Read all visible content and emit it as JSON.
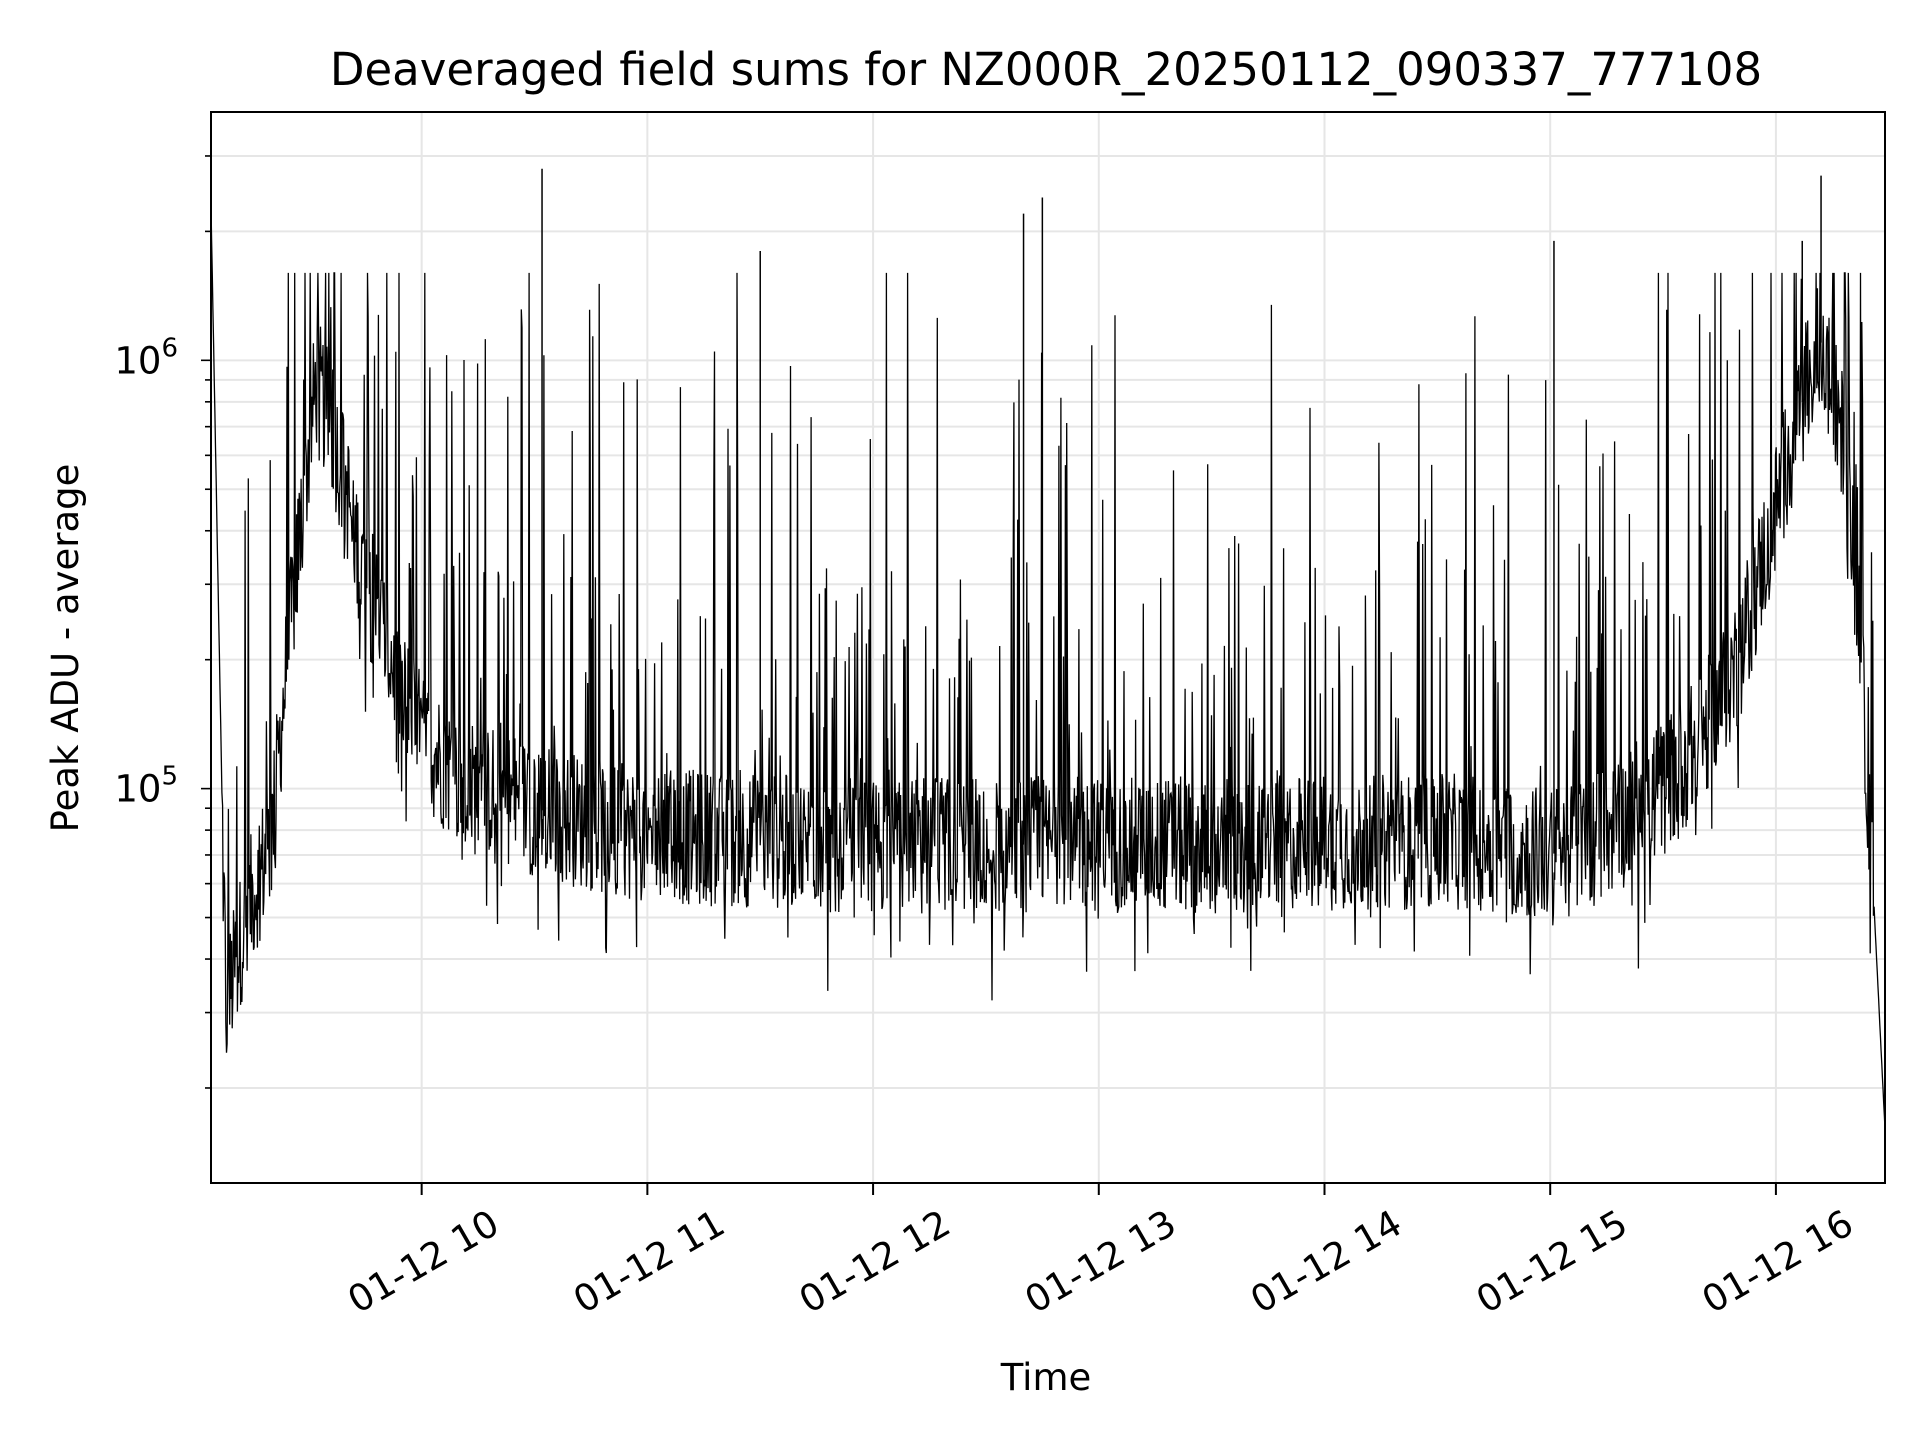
{
  "chart_data": {
    "type": "line",
    "title": "Deaveraged field sums for NZ000R_20250112_090337_777108",
    "xlabel": "Time",
    "ylabel": "Peak ADU - average",
    "x_axis": {
      "type": "time",
      "start": "2025-01-12 09:04",
      "end": "2025-01-12 16:29",
      "ticks": [
        {
          "value": "2025-01-12 10:00",
          "label": "01-12 10"
        },
        {
          "value": "2025-01-12 11:00",
          "label": "01-12 11"
        },
        {
          "value": "2025-01-12 12:00",
          "label": "01-12 12"
        },
        {
          "value": "2025-01-12 13:00",
          "label": "01-12 13"
        },
        {
          "value": "2025-01-12 14:00",
          "label": "01-12 14"
        },
        {
          "value": "2025-01-12 15:00",
          "label": "01-12 15"
        },
        {
          "value": "2025-01-12 16:00",
          "label": "01-12 16"
        }
      ]
    },
    "y_axis": {
      "scale": "log",
      "ylim": [
        12000,
        3800000
      ],
      "major_ticks": [
        {
          "value": 100000,
          "base": "10",
          "exp": "5"
        },
        {
          "value": 1000000,
          "base": "10",
          "exp": "6"
        }
      ]
    },
    "grid": true,
    "line_color": "#000000",
    "grid_color": "#e6e6e6",
    "series": [
      {
        "x": [
          "2025-01-12 09:04",
          "2025-01-12 09:08",
          "2025-01-12 09:12",
          "2025-01-12 09:16",
          "2025-01-12 09:20",
          "2025-01-12 09:24",
          "2025-01-12 09:28",
          "2025-01-12 09:32",
          "2025-01-12 09:36",
          "2025-01-12 09:40",
          "2025-01-12 09:44",
          "2025-01-12 09:48",
          "2025-01-12 09:52",
          "2025-01-12 09:56",
          "2025-01-12 10:00",
          "2025-01-12 10:06",
          "2025-01-12 10:12",
          "2025-01-12 10:18",
          "2025-01-12 10:24",
          "2025-01-12 10:30",
          "2025-01-12 10:40",
          "2025-01-12 10:50",
          "2025-01-12 11:00",
          "2025-01-12 11:20",
          "2025-01-12 11:40",
          "2025-01-12 12:00",
          "2025-01-12 12:20",
          "2025-01-12 12:40",
          "2025-01-12 13:00",
          "2025-01-12 13:20",
          "2025-01-12 13:40",
          "2025-01-12 14:00",
          "2025-01-12 14:20",
          "2025-01-12 14:40",
          "2025-01-12 15:00",
          "2025-01-12 15:10",
          "2025-01-12 15:20",
          "2025-01-12 15:30",
          "2025-01-12 15:40",
          "2025-01-12 15:50",
          "2025-01-12 16:00",
          "2025-01-12 16:06",
          "2025-01-12 16:12",
          "2025-01-12 16:18",
          "2025-01-12 16:22",
          "2025-01-12 16:26",
          "2025-01-12 16:29"
        ],
        "y": [
          2300000,
          30000,
          45000,
          60000,
          75000,
          190000,
          420000,
          900000,
          700000,
          500000,
          330000,
          260000,
          200000,
          160000,
          130000,
          115000,
          100000,
          100000,
          95000,
          90000,
          85000,
          80000,
          78000,
          76000,
          75000,
          74000,
          74000,
          74000,
          74000,
          74000,
          74000,
          75000,
          75000,
          75000,
          70000,
          75000,
          85000,
          100000,
          130000,
          200000,
          450000,
          750000,
          1100000,
          650000,
          250000,
          55000,
          16000
        ]
      }
    ],
    "spikes": [
      {
        "x": "2025-01-12 10:32",
        "y": 2800000
      },
      {
        "x": "2025-01-12 11:30",
        "y": 1800000
      },
      {
        "x": "2025-01-12 12:40",
        "y": 2200000
      },
      {
        "x": "2025-01-12 12:45",
        "y": 2400000
      },
      {
        "x": "2025-01-12 15:01",
        "y": 1900000
      },
      {
        "x": "2025-01-12 16:07",
        "y": 1900000
      },
      {
        "x": "2025-01-12 16:12",
        "y": 2700000
      }
    ]
  }
}
